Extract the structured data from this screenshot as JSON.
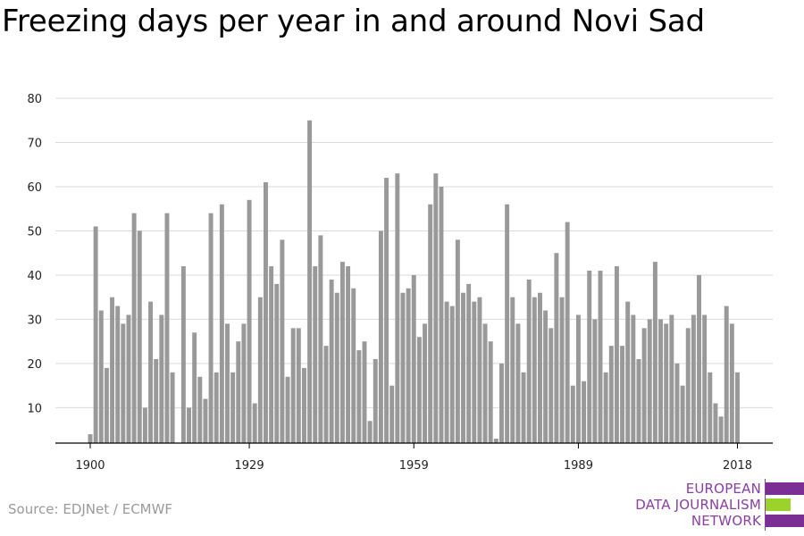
{
  "title": "Freezing days per year in and around Novi Sad",
  "source": "Source: EDJNet / ECMWF",
  "logo": {
    "lines": [
      "EUROPEAN",
      "DATA JOURNALISM",
      "NETWORK"
    ],
    "colors": {
      "purple": "#7b2f95",
      "green": "#9bd22c",
      "text": "#8a3fa0"
    }
  },
  "chart_data": {
    "type": "bar",
    "title": "Freezing days per year in and around Novi Sad",
    "xlabel": "",
    "ylabel": "",
    "ylim": [
      2,
      82
    ],
    "yticks": [
      10,
      20,
      30,
      40,
      50,
      60,
      70,
      80
    ],
    "xticks": [
      1900,
      1929,
      1959,
      1989,
      2018
    ],
    "bar_color": "#999999",
    "grid": true,
    "categories": [
      1900,
      1901,
      1902,
      1903,
      1904,
      1905,
      1906,
      1907,
      1908,
      1909,
      1910,
      1911,
      1912,
      1913,
      1914,
      1915,
      1916,
      1917,
      1918,
      1919,
      1920,
      1921,
      1922,
      1923,
      1924,
      1925,
      1926,
      1927,
      1928,
      1929,
      1930,
      1931,
      1932,
      1933,
      1934,
      1935,
      1936,
      1937,
      1938,
      1939,
      1940,
      1941,
      1942,
      1943,
      1944,
      1945,
      1946,
      1947,
      1948,
      1949,
      1950,
      1951,
      1952,
      1953,
      1954,
      1955,
      1956,
      1957,
      1958,
      1959,
      1960,
      1961,
      1962,
      1963,
      1964,
      1965,
      1966,
      1967,
      1968,
      1969,
      1970,
      1971,
      1972,
      1973,
      1974,
      1975,
      1976,
      1977,
      1978,
      1979,
      1980,
      1981,
      1982,
      1983,
      1984,
      1985,
      1986,
      1987,
      1988,
      1989,
      1990,
      1991,
      1992,
      1993,
      1994,
      1995,
      1996,
      1997,
      1998,
      1999,
      2000,
      2001,
      2002,
      2003,
      2004,
      2005,
      2006,
      2007,
      2008,
      2009,
      2010,
      2011,
      2012,
      2013,
      2014,
      2015,
      2016,
      2017,
      2018
    ],
    "values": [
      4,
      51,
      32,
      19,
      35,
      33,
      29,
      31,
      54,
      50,
      10,
      34,
      21,
      31,
      54,
      18,
      2,
      42,
      10,
      27,
      17,
      12,
      54,
      18,
      56,
      29,
      18,
      25,
      29,
      57,
      11,
      35,
      61,
      42,
      38,
      48,
      17,
      28,
      28,
      19,
      75,
      42,
      49,
      24,
      39,
      36,
      43,
      42,
      37,
      23,
      25,
      7,
      21,
      50,
      62,
      15,
      63,
      36,
      37,
      40,
      26,
      29,
      56,
      63,
      60,
      34,
      33,
      48,
      36,
      38,
      34,
      35,
      29,
      25,
      3,
      20,
      56,
      35,
      29,
      18,
      39,
      35,
      36,
      32,
      28,
      45,
      35,
      52,
      15,
      31,
      16,
      41,
      30,
      41,
      18,
      24,
      42,
      24,
      34,
      31,
      21,
      28,
      30,
      43,
      30,
      29,
      31,
      20,
      15,
      28,
      31,
      40,
      31,
      18,
      11,
      8,
      33,
      29,
      18
    ]
  }
}
